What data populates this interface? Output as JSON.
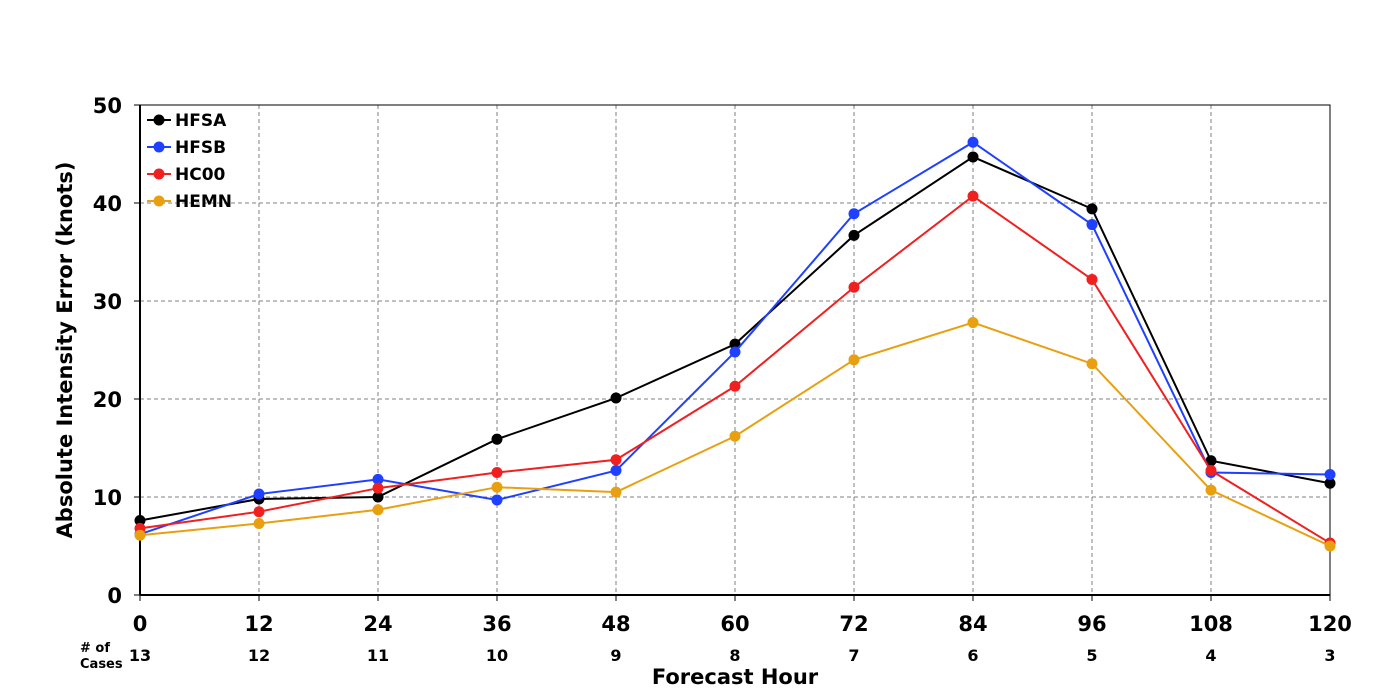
{
  "chart_data": {
    "type": "line",
    "title": "",
    "xlabel": "Forecast Hour",
    "ylabel": "Absolute Intensity Error (knots)",
    "x": [
      0,
      12,
      24,
      36,
      48,
      60,
      72,
      84,
      96,
      108,
      120
    ],
    "xlim": [
      0,
      120
    ],
    "ylim": [
      0,
      50
    ],
    "yticks": [
      0,
      10,
      20,
      30,
      40,
      50
    ],
    "grid": true,
    "legend_position": "top-left",
    "cases_label": "# of Cases",
    "cases_label_lines": [
      "# of",
      "Cases"
    ],
    "cases": [
      13,
      12,
      11,
      10,
      9,
      8,
      7,
      6,
      5,
      4,
      3
    ],
    "series": [
      {
        "name": "HFSA",
        "color": "#000000",
        "values": [
          7.6,
          9.8,
          10.0,
          15.9,
          20.1,
          25.6,
          36.7,
          44.7,
          39.4,
          13.7,
          11.4
        ]
      },
      {
        "name": "HFSB",
        "color": "#2040ff",
        "values": [
          6.2,
          10.3,
          11.8,
          9.7,
          12.7,
          24.8,
          38.9,
          46.2,
          37.8,
          12.5,
          12.3
        ]
      },
      {
        "name": "HC00",
        "color": "#f02020",
        "values": [
          6.8,
          8.5,
          10.9,
          12.5,
          13.8,
          21.3,
          31.4,
          40.7,
          32.2,
          12.7,
          5.3
        ]
      },
      {
        "name": "HEMN",
        "color": "#e8a010",
        "values": [
          6.1,
          7.3,
          8.7,
          11.0,
          10.5,
          16.2,
          24.0,
          27.8,
          23.6,
          10.7,
          5.0
        ]
      }
    ]
  }
}
